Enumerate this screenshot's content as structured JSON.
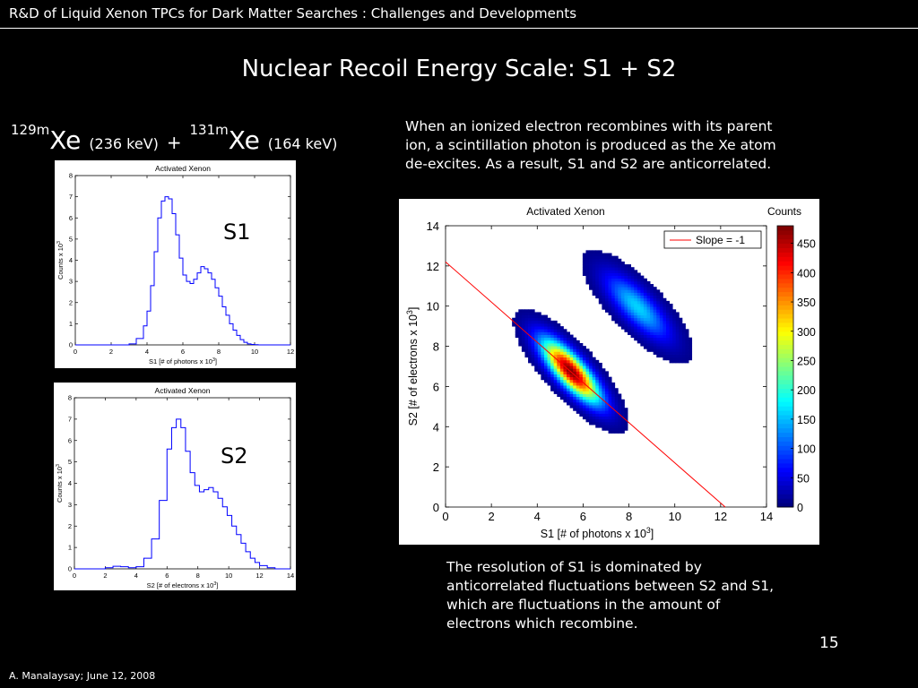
{
  "header": {
    "title": "R&D of Liquid Xenon TPCs for Dark Matter Searches : Challenges and Developments"
  },
  "slide": {
    "title": "Nuclear Recoil Energy Scale: S1 + S2",
    "isotopes": {
      "iso1_mass": "129m",
      "iso1_symbol": "Xe",
      "iso1_energy": "(236 keV)",
      "plus": "+",
      "iso2_mass": "131m",
      "iso2_symbol": "Xe",
      "iso2_energy": "(164 keV)"
    },
    "text_top": "When an ionized electron recombines with its parent ion, a scintillation photon is produced as the Xe atom de-excites.  As a result, S1 and S2 are anticorrelated.",
    "text_bottom": "The resolution of S1 is dominated by anticorrelated fluctuations between S2 and S1, which are fluctuations in the amount of electrons which recombine.",
    "label_s1": "S1",
    "label_s2": "S2",
    "page_number": "15",
    "footer": "A. Manalaysay; June 12, 2008"
  },
  "chart_data": [
    {
      "type": "line",
      "title": "Activated Xenon",
      "xlabel": "S1 [# of photons x 10",
      "xlabel_sup": "3",
      "ylabel": "Counts x 10",
      "ylabel_sup": "3",
      "xlim": [
        0,
        12
      ],
      "ylim": [
        0,
        8
      ],
      "xticks": [
        0,
        2,
        4,
        6,
        8,
        10,
        12
      ],
      "yticks": [
        0,
        1,
        2,
        3,
        4,
        5,
        6,
        7,
        8
      ],
      "color": "#0000ff",
      "series": [
        {
          "x": [
            0,
            3.0,
            3.4,
            3.8,
            4.0,
            4.2,
            4.4,
            4.6,
            4.8,
            5.0,
            5.2,
            5.4,
            5.6,
            5.8,
            6.0,
            6.2,
            6.4,
            6.6,
            6.8,
            7.0,
            7.2,
            7.4,
            7.6,
            7.8,
            8.0,
            8.2,
            8.4,
            8.6,
            8.8,
            9.0,
            9.2,
            9.4,
            9.6,
            9.8,
            10.0,
            10.2,
            10.6,
            11.0,
            12.0
          ],
          "y": [
            0,
            0.05,
            0.3,
            0.9,
            1.6,
            2.8,
            4.4,
            6.0,
            6.8,
            7.0,
            6.9,
            6.2,
            5.2,
            4.1,
            3.3,
            3.0,
            2.9,
            3.1,
            3.4,
            3.7,
            3.6,
            3.4,
            3.1,
            2.7,
            2.3,
            1.8,
            1.4,
            1.0,
            0.7,
            0.45,
            0.25,
            0.12,
            0.05,
            0.02,
            0.01,
            0,
            0,
            0,
            0
          ]
        }
      ]
    },
    {
      "type": "line",
      "title": "Activated Xenon",
      "xlabel": "S2 [# of electrons x 10",
      "xlabel_sup": "3",
      "ylabel": "Counts x 10",
      "ylabel_sup": "3",
      "xlim": [
        0,
        14
      ],
      "ylim": [
        0,
        8
      ],
      "xticks": [
        0,
        2,
        4,
        6,
        8,
        10,
        12,
        14
      ],
      "yticks": [
        0,
        1,
        2,
        3,
        4,
        5,
        6,
        7,
        8
      ],
      "color": "#0000ff",
      "series": [
        {
          "x": [
            0,
            2.0,
            2.5,
            3.0,
            3.5,
            4.0,
            4.5,
            5.0,
            5.5,
            6.0,
            6.3,
            6.6,
            6.9,
            7.2,
            7.5,
            7.8,
            8.1,
            8.4,
            8.7,
            9.0,
            9.3,
            9.6,
            9.9,
            10.2,
            10.5,
            10.8,
            11.1,
            11.4,
            11.7,
            12.0,
            12.5,
            13.0,
            14.0
          ],
          "y": [
            0,
            0.05,
            0.12,
            0.1,
            0.05,
            0.1,
            0.5,
            1.4,
            3.2,
            5.6,
            6.6,
            7.0,
            6.6,
            5.5,
            4.5,
            3.9,
            3.6,
            3.7,
            3.8,
            3.6,
            3.3,
            2.9,
            2.5,
            2.0,
            1.6,
            1.2,
            0.8,
            0.5,
            0.3,
            0.15,
            0.05,
            0,
            0
          ]
        }
      ]
    },
    {
      "type": "heatmap",
      "title": "Activated Xenon",
      "xlabel": "S1 [# of photons x 10",
      "xlabel_sup": "3",
      "ylabel": "S2 [# of electrons x 10",
      "ylabel_sup": "3",
      "xlim": [
        0,
        14
      ],
      "ylim": [
        0,
        14
      ],
      "xticks": [
        0,
        2,
        4,
        6,
        8,
        10,
        12,
        14
      ],
      "yticks": [
        0,
        2,
        4,
        6,
        8,
        10,
        12,
        14
      ],
      "colorbar_label": "Counts",
      "colorbar_ticks": [
        0,
        50,
        100,
        150,
        200,
        250,
        300,
        350,
        400,
        450
      ],
      "colorbar_max": 480,
      "legend": {
        "label": "Slope = -1",
        "color": "#ff0000",
        "position": "top-right"
      },
      "line": {
        "x": [
          0,
          12.2
        ],
        "y": [
          12.2,
          0
        ]
      },
      "clusters": [
        {
          "center_s1": 5.4,
          "center_s2": 6.7,
          "sigma_s1": 0.85,
          "sigma_s2": 1.05,
          "correlation": -0.8,
          "peak_counts": 480
        },
        {
          "center_s1": 8.3,
          "center_s2": 9.9,
          "sigma_s1": 0.95,
          "sigma_s2": 1.1,
          "correlation": -0.78,
          "peak_counts": 160
        }
      ]
    }
  ]
}
